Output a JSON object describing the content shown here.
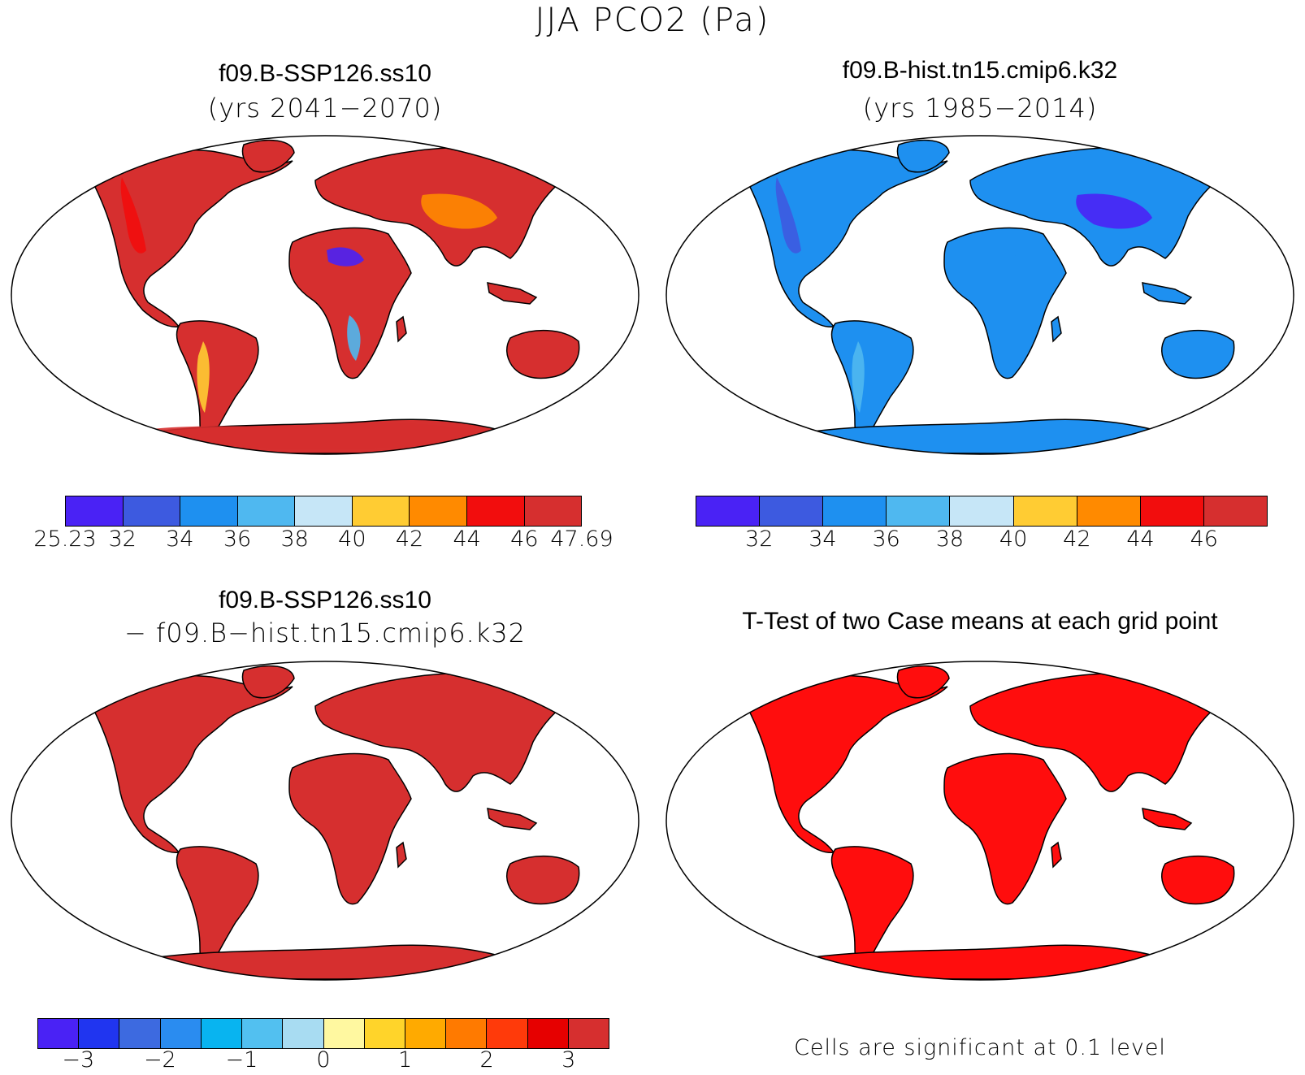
{
  "figure": {
    "title": "JJA PCO2 (Pa)"
  },
  "panels": {
    "top_left": {
      "title": "f09.B-SSP126.ss10",
      "subtitle": "(yrs 2041−2070)",
      "land_color": "#d62f2f",
      "accent_colors": [
        "#f20d0d",
        "#ff8a00",
        "#ffcc33",
        "#4a22f5",
        "#4fb8f0",
        "#d62f2f"
      ]
    },
    "top_right": {
      "title": "f09.B-hist.tn15.cmip6.k32",
      "subtitle": "(yrs 1985−2014)",
      "land_color": "#1e90f0",
      "accent_colors": [
        "#3d5ae0",
        "#4a22f5",
        "#4fb8f0",
        "#1e90f0"
      ]
    },
    "bottom_left": {
      "title": "f09.B-SSP126.ss10",
      "subtitle": "− f09.B−hist.tn15.cmip6.k32",
      "land_color": "#d62f2f",
      "accent_colors": []
    },
    "bottom_right": {
      "title": "T-Test of two Case means at each grid point",
      "land_color": "#ff0d0d",
      "accent_colors": [],
      "note": "Cells are significant at 0.1 level"
    }
  },
  "colorbars": {
    "top_left": {
      "colors": [
        "#4a22f5",
        "#3d5ae0",
        "#1e90f0",
        "#4fb8f0",
        "#c6e6f7",
        "#ffcc33",
        "#ff8a00",
        "#f20d0d",
        "#d62f2f"
      ],
      "labels": [
        "25.23",
        "32",
        "34",
        "36",
        "38",
        "40",
        "42",
        "44",
        "46",
        "47.69"
      ]
    },
    "top_right": {
      "colors": [
        "#4a22f5",
        "#3d5ae0",
        "#1e90f0",
        "#4fb8f0",
        "#c6e6f7",
        "#ffcc33",
        "#ff8a00",
        "#f20d0d",
        "#d62f2f"
      ],
      "labels": [
        "32",
        "34",
        "36",
        "38",
        "40",
        "42",
        "44",
        "46"
      ]
    },
    "bottom_left": {
      "colors": [
        "#4a22f5",
        "#2035f0",
        "#3d6ae0",
        "#2a8cf0",
        "#08b4f0",
        "#52c0f0",
        "#a8dcf2",
        "#fff8a0",
        "#ffd42a",
        "#ffaa00",
        "#ff7a00",
        "#ff3a0a",
        "#e60000",
        "#d62f2f"
      ],
      "labels": [
        "−3",
        "−2",
        "−1",
        "0",
        "1",
        "2",
        "3"
      ]
    }
  }
}
